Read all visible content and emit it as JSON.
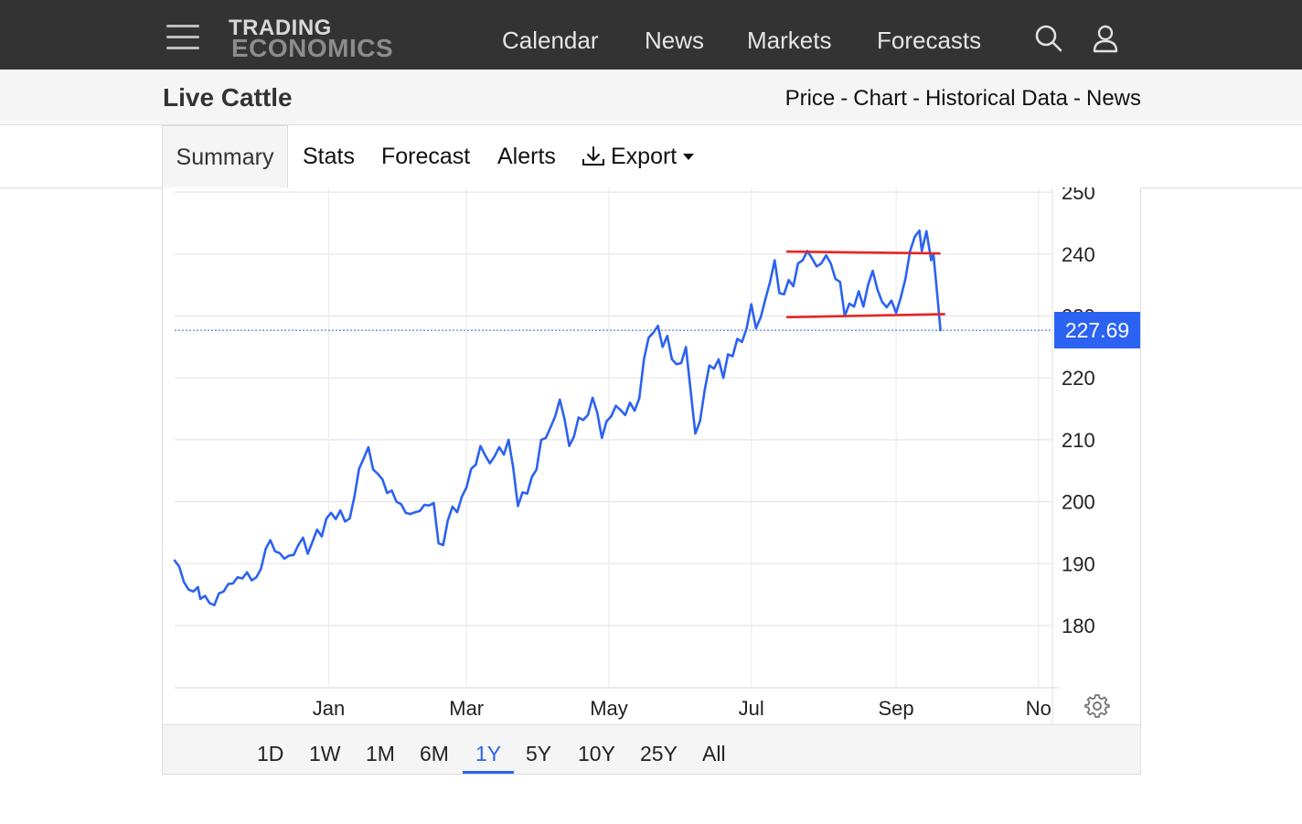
{
  "header": {
    "logo_line1": "TRADING",
    "logo_line2": "ECONOMICS",
    "nav": {
      "calendar": "Calendar",
      "news": "News",
      "markets": "Markets",
      "forecasts": "Forecasts"
    }
  },
  "subheader": {
    "title": "Live Cattle",
    "links": {
      "price": "Price",
      "chart": "Chart",
      "historical": "Historical Data",
      "news": "News"
    },
    "separator": "-"
  },
  "tabs": {
    "summary": "Summary",
    "stats": "Stats",
    "forecast": "Forecast",
    "alerts": "Alerts",
    "export": "Export"
  },
  "chart_data": {
    "type": "line",
    "title": "",
    "ylim": [
      172,
      250
    ],
    "yticks": [
      180,
      190,
      200,
      210,
      220,
      230,
      240,
      250
    ],
    "x_tick_labels": [
      "Jan",
      "Mar",
      "May",
      "Jul",
      "Sep",
      "No"
    ],
    "x_tick_days": [
      0,
      59,
      120,
      181,
      243,
      304
    ],
    "x_range_days": [
      -66,
      307
    ],
    "current_price": 227.69,
    "current_price_label": "227.69",
    "series": [
      {
        "color": "#2b62f2",
        "points": [
          [
            -66,
            190.5
          ],
          [
            -64,
            189.5
          ],
          [
            -62,
            187
          ],
          [
            -60,
            185.8
          ],
          [
            -58,
            185.5
          ],
          [
            -56,
            186.2
          ],
          [
            -55,
            184.3
          ],
          [
            -53,
            184.8
          ],
          [
            -51,
            183.6
          ],
          [
            -49,
            183.3
          ],
          [
            -47,
            185.2
          ],
          [
            -45,
            185.5
          ],
          [
            -43,
            186.7
          ],
          [
            -41,
            186.8
          ],
          [
            -39,
            187.8
          ],
          [
            -37,
            187.6
          ],
          [
            -35,
            188.6
          ],
          [
            -33,
            187.3
          ],
          [
            -31,
            187.8
          ],
          [
            -29,
            189.2
          ],
          [
            -27,
            192.4
          ],
          [
            -25,
            193.8
          ],
          [
            -23,
            192
          ],
          [
            -21,
            191.7
          ],
          [
            -19,
            190.8
          ],
          [
            -17,
            191.3
          ],
          [
            -15,
            191.4
          ],
          [
            -13,
            193
          ],
          [
            -11,
            194.2
          ],
          [
            -9,
            191.6
          ],
          [
            -7,
            193.5
          ],
          [
            -5,
            195.5
          ],
          [
            -3,
            194.4
          ],
          [
            -1,
            197.3
          ],
          [
            1,
            198.2
          ],
          [
            3,
            197.2
          ],
          [
            5,
            198.6
          ],
          [
            7,
            196.8
          ],
          [
            9,
            197.3
          ],
          [
            11,
            200.8
          ],
          [
            13,
            205.3
          ],
          [
            15,
            207
          ],
          [
            17,
            208.8
          ],
          [
            19,
            205.2
          ],
          [
            21,
            204.5
          ],
          [
            23,
            203.6
          ],
          [
            25,
            201.4
          ],
          [
            27,
            201.8
          ],
          [
            29,
            200
          ],
          [
            31,
            199.6
          ],
          [
            33,
            198.2
          ],
          [
            35,
            198
          ],
          [
            37,
            198.3
          ],
          [
            39,
            198.5
          ],
          [
            41,
            199.5
          ],
          [
            43,
            199.4
          ],
          [
            45,
            199.8
          ],
          [
            47,
            193.3
          ],
          [
            49,
            193
          ],
          [
            51,
            197
          ],
          [
            53,
            199.2
          ],
          [
            55,
            198.3
          ],
          [
            57,
            200.8
          ],
          [
            59,
            202.3
          ],
          [
            61,
            205.3
          ],
          [
            63,
            206
          ],
          [
            65,
            209
          ],
          [
            67,
            207.5
          ],
          [
            69,
            206.2
          ],
          [
            71,
            207.3
          ],
          [
            73,
            208.8
          ],
          [
            75,
            207.6
          ],
          [
            77,
            210
          ],
          [
            79,
            205.5
          ],
          [
            81,
            199.3
          ],
          [
            83,
            201.5
          ],
          [
            85,
            201.3
          ],
          [
            87,
            204
          ],
          [
            89,
            205.2
          ],
          [
            91,
            210
          ],
          [
            93,
            210.3
          ],
          [
            95,
            212
          ],
          [
            97,
            213.8
          ],
          [
            99,
            216.5
          ],
          [
            101,
            213.3
          ],
          [
            103,
            209
          ],
          [
            105,
            210.5
          ],
          [
            107,
            213.6
          ],
          [
            109,
            213.2
          ],
          [
            111,
            214
          ],
          [
            113,
            216.8
          ],
          [
            115,
            214.4
          ],
          [
            117,
            210.3
          ],
          [
            119,
            213
          ],
          [
            121,
            213.8
          ],
          [
            123,
            215.5
          ],
          [
            125,
            214.8
          ],
          [
            127,
            214
          ],
          [
            129,
            216
          ],
          [
            131,
            214.7
          ],
          [
            133,
            216.7
          ],
          [
            135,
            223
          ],
          [
            137,
            226.5
          ],
          [
            139,
            227.3
          ],
          [
            141,
            228.4
          ],
          [
            143,
            225
          ],
          [
            145,
            226.8
          ],
          [
            147,
            223
          ],
          [
            149,
            222.2
          ],
          [
            151,
            222.4
          ],
          [
            153,
            225
          ],
          [
            155,
            218
          ],
          [
            157,
            211
          ],
          [
            159,
            213
          ],
          [
            161,
            218
          ],
          [
            163,
            222
          ],
          [
            165,
            221.5
          ],
          [
            167,
            223
          ],
          [
            169,
            220
          ],
          [
            171,
            223.8
          ],
          [
            173,
            223.5
          ],
          [
            175,
            226.3
          ],
          [
            177,
            225.8
          ],
          [
            179,
            228
          ],
          [
            181,
            231.9
          ],
          [
            183,
            228
          ],
          [
            185,
            229.8
          ],
          [
            187,
            232.7
          ],
          [
            189,
            235.5
          ],
          [
            191,
            239
          ],
          [
            193,
            233.7
          ],
          [
            195,
            233.5
          ],
          [
            197,
            235.8
          ],
          [
            199,
            234.8
          ],
          [
            201,
            238.5
          ],
          [
            203,
            239
          ],
          [
            205,
            240.5
          ],
          [
            207,
            239.3
          ],
          [
            209,
            238
          ],
          [
            211,
            238.5
          ],
          [
            213,
            239.8
          ],
          [
            215,
            238.5
          ],
          [
            217,
            236
          ],
          [
            219,
            235.5
          ],
          [
            221,
            230
          ],
          [
            223,
            232
          ],
          [
            225,
            231.5
          ],
          [
            227,
            234
          ],
          [
            229,
            231.5
          ],
          [
            231,
            235
          ],
          [
            233,
            237.3
          ],
          [
            235,
            234.3
          ],
          [
            237,
            232.3
          ],
          [
            239,
            231.4
          ],
          [
            241,
            232.5
          ],
          [
            243,
            230.5
          ],
          [
            245,
            233
          ],
          [
            247,
            236
          ],
          [
            249,
            240.5
          ],
          [
            251,
            242.8
          ],
          [
            253,
            243.8
          ],
          [
            254,
            240.5
          ],
          [
            256,
            243.7
          ],
          [
            258,
            239
          ],
          [
            259,
            240
          ],
          [
            261,
            232
          ],
          [
            262,
            227.7
          ]
        ]
      }
    ],
    "annotations": [
      {
        "kind": "line",
        "color": "#e82424",
        "from": [
          196,
          240.4
        ],
        "to": [
          262,
          240.1
        ]
      },
      {
        "kind": "line",
        "color": "#e82424",
        "from": [
          196,
          229.8
        ],
        "to": [
          264,
          230.3
        ]
      }
    ]
  },
  "range_buttons": [
    "1D",
    "1W",
    "1M",
    "6M",
    "1Y",
    "5Y",
    "10Y",
    "25Y",
    "All"
  ],
  "range_active": "1Y"
}
